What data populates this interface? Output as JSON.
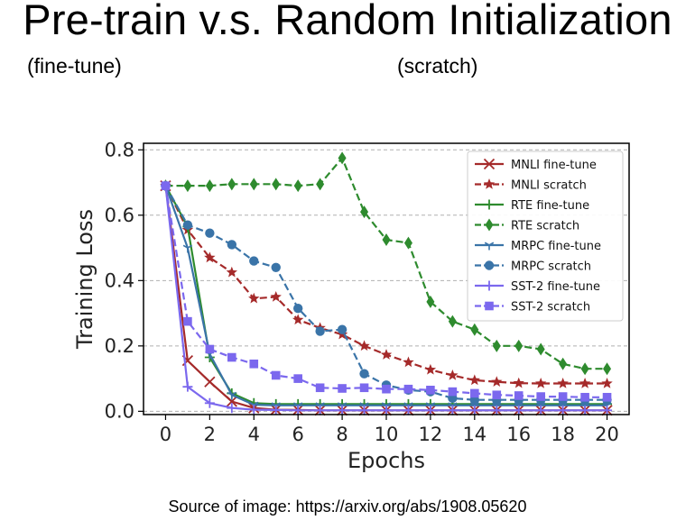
{
  "slide": {
    "title": "Pre-train v.s. Random Initialization",
    "subtitle_left": "(fine-tune)",
    "subtitle_right": "(scratch)",
    "caption": "Source of image: https://arxiv.org/abs/1908.05620"
  },
  "chart_data": {
    "type": "line",
    "title": "",
    "xlabel": "Epochs",
    "ylabel": "Training Loss",
    "xlim": [
      -1,
      21
    ],
    "ylim": [
      -0.01,
      0.82
    ],
    "x_ticks": [
      0,
      2,
      4,
      6,
      8,
      10,
      12,
      14,
      16,
      18,
      20
    ],
    "y_ticks": [
      0.0,
      0.2,
      0.4,
      0.6,
      0.8
    ],
    "y_tick_labels": [
      "0.0",
      "0.2",
      "0.4",
      "0.6",
      "0.8"
    ],
    "grid": "horizontal dashed",
    "legend_position": "top-right",
    "x": [
      0,
      1,
      2,
      3,
      4,
      5,
      6,
      7,
      8,
      9,
      10,
      11,
      12,
      13,
      14,
      15,
      16,
      17,
      18,
      19,
      20
    ],
    "series": [
      {
        "name": "MNLI fine-tune",
        "color": "#a52a2a",
        "dash": "solid",
        "marker": "x",
        "values": [
          0.69,
          0.155,
          0.09,
          0.03,
          0.01,
          0.005,
          0.004,
          0.003,
          0.003,
          0.003,
          0.003,
          0.003,
          0.003,
          0.003,
          0.003,
          0.003,
          0.003,
          0.003,
          0.003,
          0.003,
          0.003
        ]
      },
      {
        "name": "MNLI scratch",
        "color": "#a52a2a",
        "dash": "dashed",
        "marker": "star",
        "values": [
          0.69,
          0.555,
          0.47,
          0.425,
          0.345,
          0.35,
          0.28,
          0.255,
          0.235,
          0.2,
          0.173,
          0.15,
          0.127,
          0.11,
          0.095,
          0.09,
          0.086,
          0.085,
          0.085,
          0.085,
          0.085
        ]
      },
      {
        "name": "RTE fine-tune",
        "color": "#2e8b2e",
        "dash": "solid",
        "marker": "plus",
        "values": [
          0.69,
          0.565,
          0.165,
          0.055,
          0.025,
          0.022,
          0.022,
          0.022,
          0.022,
          0.022,
          0.022,
          0.022,
          0.022,
          0.022,
          0.022,
          0.022,
          0.022,
          0.022,
          0.022,
          0.022,
          0.022
        ]
      },
      {
        "name": "RTE scratch",
        "color": "#2e8b2e",
        "dash": "dashed",
        "marker": "diamond",
        "values": [
          0.69,
          0.69,
          0.69,
          0.695,
          0.695,
          0.695,
          0.69,
          0.695,
          0.775,
          0.61,
          0.525,
          0.515,
          0.335,
          0.275,
          0.25,
          0.2,
          0.2,
          0.19,
          0.145,
          0.13,
          0.13
        ]
      },
      {
        "name": "MRPC fine-tune",
        "color": "#3a74a8",
        "dash": "solid",
        "marker": "tri",
        "values": [
          0.69,
          0.5,
          0.175,
          0.05,
          0.02,
          0.018,
          0.018,
          0.018,
          0.018,
          0.018,
          0.018,
          0.018,
          0.018,
          0.018,
          0.018,
          0.018,
          0.018,
          0.018,
          0.018,
          0.018,
          0.018
        ]
      },
      {
        "name": "MRPC scratch",
        "color": "#3a74a8",
        "dash": "dashed",
        "marker": "circle",
        "values": [
          0.69,
          0.57,
          0.545,
          0.51,
          0.46,
          0.44,
          0.315,
          0.245,
          0.25,
          0.115,
          0.08,
          0.065,
          0.06,
          0.04,
          0.035,
          0.035,
          0.035,
          0.035,
          0.035,
          0.035,
          0.035
        ]
      },
      {
        "name": "SST-2 fine-tune",
        "color": "#7b68ee",
        "dash": "solid",
        "marker": "plus",
        "values": [
          0.69,
          0.075,
          0.025,
          0.01,
          0.005,
          0.004,
          0.003,
          0.003,
          0.003,
          0.003,
          0.003,
          0.003,
          0.003,
          0.003,
          0.003,
          0.003,
          0.003,
          0.003,
          0.003,
          0.003,
          0.003
        ]
      },
      {
        "name": "SST-2 scratch",
        "color": "#7b68ee",
        "dash": "dashed",
        "marker": "square",
        "values": [
          0.69,
          0.275,
          0.19,
          0.165,
          0.145,
          0.11,
          0.1,
          0.072,
          0.07,
          0.072,
          0.068,
          0.068,
          0.065,
          0.06,
          0.055,
          0.05,
          0.048,
          0.045,
          0.045,
          0.043,
          0.043
        ]
      }
    ]
  }
}
